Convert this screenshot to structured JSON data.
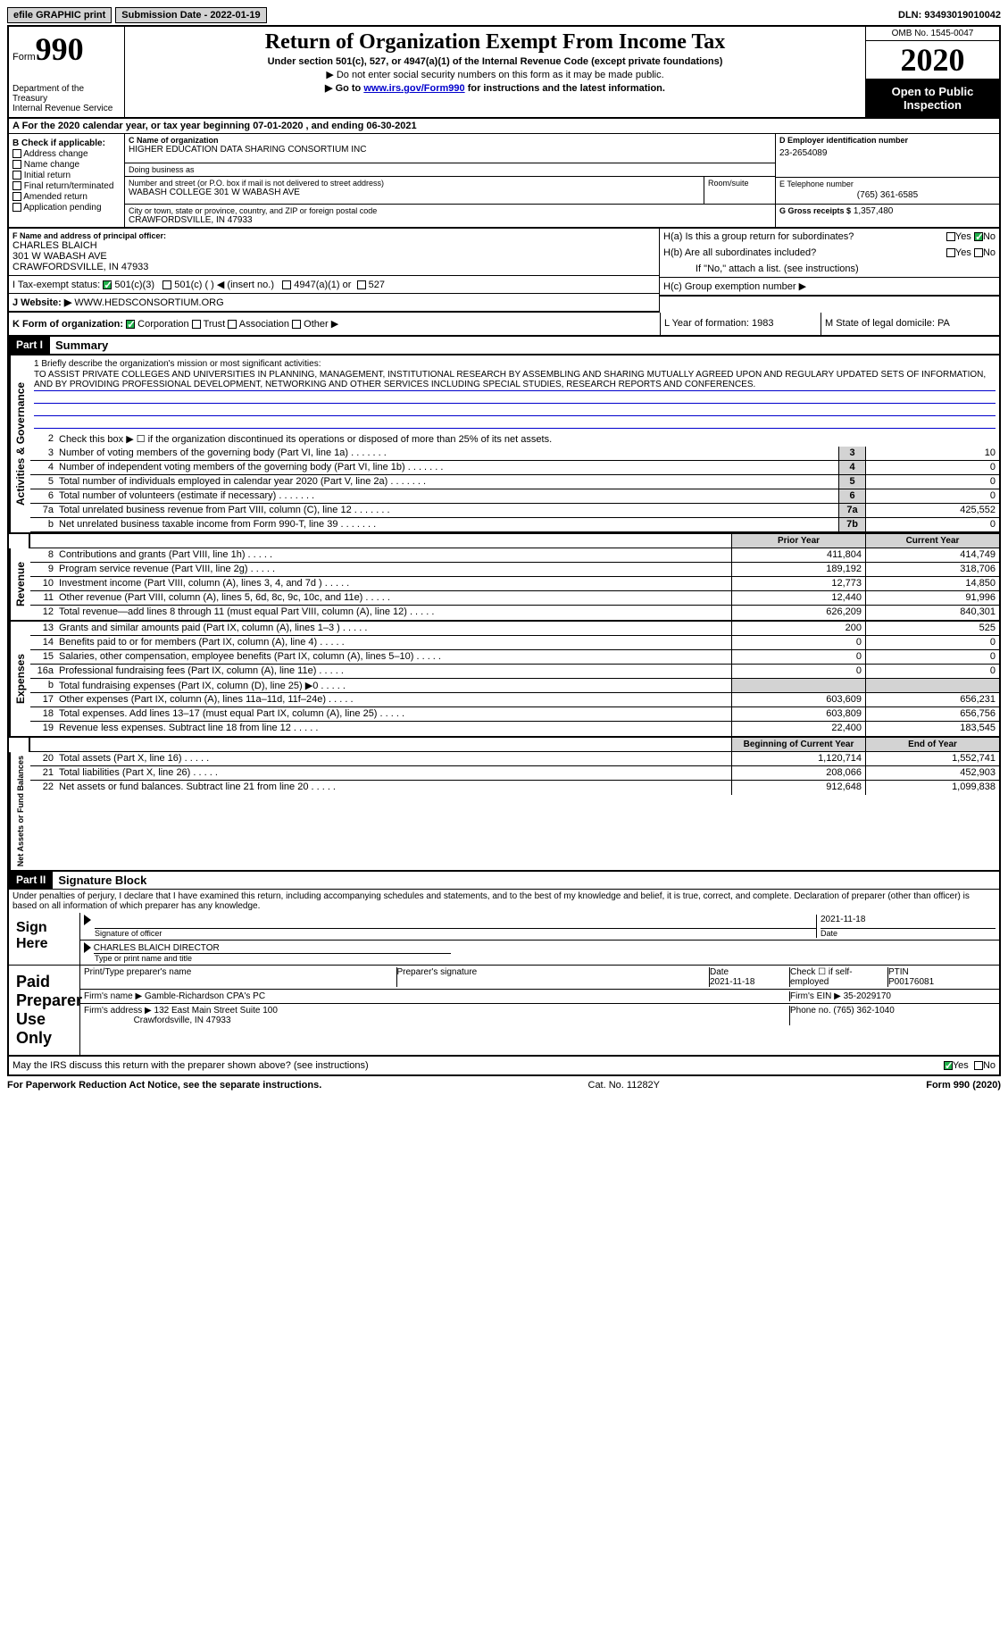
{
  "topbar": {
    "efile": "efile GRAPHIC print",
    "subdate_lbl": "Submission Date - 2022-01-19",
    "dln_lbl": "DLN: 93493019010042"
  },
  "header": {
    "form_lbl": "Form",
    "form_num": "990",
    "dept": "Department of the Treasury\nInternal Revenue Service",
    "title": "Return of Organization Exempt From Income Tax",
    "sub": "Under section 501(c), 527, or 4947(a)(1) of the Internal Revenue Code (except private foundations)",
    "note1": "▶ Do not enter social security numbers on this form as it may be made public.",
    "note2_pre": "▶ Go to ",
    "note2_link": "www.irs.gov/Form990",
    "note2_post": " for instructions and the latest information.",
    "omb": "OMB No. 1545-0047",
    "year": "2020",
    "open": "Open to Public Inspection"
  },
  "rowA": "A For the 2020 calendar year, or tax year beginning 07-01-2020    , and ending 06-30-2021",
  "colB": {
    "hdr": "B Check if applicable:",
    "opts": [
      "Address change",
      "Name change",
      "Initial return",
      "Final return/terminated",
      "Amended return",
      "Application pending"
    ]
  },
  "colC": {
    "name_lbl": "C Name of organization",
    "name": "HIGHER EDUCATION DATA SHARING CONSORTIUM INC",
    "dba_lbl": "Doing business as",
    "addr_lbl": "Number and street (or P.O. box if mail is not delivered to street address)",
    "addr": "WABASH COLLEGE 301 W WABASH AVE",
    "room_lbl": "Room/suite",
    "city_lbl": "City or town, state or province, country, and ZIP or foreign postal code",
    "city": "CRAWFORDSVILLE, IN  47933"
  },
  "colD": {
    "lbl": "D Employer identification number",
    "val": "23-2654089"
  },
  "colE": {
    "lbl": "E Telephone number",
    "val": "(765) 361-6585"
  },
  "colG": {
    "lbl": "G Gross receipts $",
    "val": "1,357,480"
  },
  "colF": {
    "lbl": "F  Name and address of principal officer:",
    "name": "CHARLES BLAICH",
    "addr1": "301 W WABASH AVE",
    "addr2": "CRAWFORDSVILLE, IN  47933"
  },
  "colH": {
    "a": "H(a)  Is this a group return for subordinates?",
    "b": "H(b)  Are all subordinates included?",
    "note": "If \"No,\" attach a list. (see instructions)",
    "c": "H(c)  Group exemption number ▶"
  },
  "rowI": {
    "lbl": "I   Tax-exempt status:",
    "opts": [
      "501(c)(3)",
      "501(c) (  ) ◀ (insert no.)",
      "4947(a)(1) or",
      "527"
    ]
  },
  "rowJ": {
    "lbl": "J   Website: ▶",
    "val": "WWW.HEDSCONSORTIUM.ORG"
  },
  "rowK": {
    "lbl": "K Form of organization:",
    "opts": [
      "Corporation",
      "Trust",
      "Association",
      "Other ▶"
    ]
  },
  "rowL": {
    "lbl": "L Year of formation: 1983"
  },
  "rowM": {
    "lbl": "M State of legal domicile: PA"
  },
  "part1": {
    "hdr": "Part I",
    "title": "Summary",
    "mission_lbl": "1  Briefly describe the organization's mission or most significant activities:",
    "mission": "TO ASSIST PRIVATE COLLEGES AND UNIVERSITIES IN PLANNING, MANAGEMENT, INSTITUTIONAL RESEARCH BY ASSEMBLING AND SHARING MUTUALLY AGREED UPON AND REGULARY UPDATED SETS OF INFORMATION, AND BY PROVIDING PROFESSIONAL DEVELOPMENT, NETWORKING AND OTHER SERVICES INCLUDING SPECIAL STUDIES, RESEARCH REPORTS AND CONFERENCES.",
    "line2": "Check this box ▶ ☐ if the organization discontinued its operations or disposed of more than 25% of its net assets.",
    "gov_lines": [
      {
        "n": "3",
        "t": "Number of voting members of the governing body (Part VI, line 1a)",
        "b": "3",
        "v": "10"
      },
      {
        "n": "4",
        "t": "Number of independent voting members of the governing body (Part VI, line 1b)",
        "b": "4",
        "v": "0"
      },
      {
        "n": "5",
        "t": "Total number of individuals employed in calendar year 2020 (Part V, line 2a)",
        "b": "5",
        "v": "0"
      },
      {
        "n": "6",
        "t": "Total number of volunteers (estimate if necessary)",
        "b": "6",
        "v": "0"
      },
      {
        "n": "7a",
        "t": "Total unrelated business revenue from Part VIII, column (C), line 12",
        "b": "7a",
        "v": "425,552"
      },
      {
        "n": "b",
        "t": "Net unrelated business taxable income from Form 990-T, line 39",
        "b": "7b",
        "v": "0"
      }
    ],
    "col_hdr": {
      "prior": "Prior Year",
      "current": "Current Year"
    },
    "rev_lines": [
      {
        "n": "8",
        "t": "Contributions and grants (Part VIII, line 1h)",
        "p": "411,804",
        "c": "414,749"
      },
      {
        "n": "9",
        "t": "Program service revenue (Part VIII, line 2g)",
        "p": "189,192",
        "c": "318,706"
      },
      {
        "n": "10",
        "t": "Investment income (Part VIII, column (A), lines 3, 4, and 7d )",
        "p": "12,773",
        "c": "14,850"
      },
      {
        "n": "11",
        "t": "Other revenue (Part VIII, column (A), lines 5, 6d, 8c, 9c, 10c, and 11e)",
        "p": "12,440",
        "c": "91,996"
      },
      {
        "n": "12",
        "t": "Total revenue—add lines 8 through 11 (must equal Part VIII, column (A), line 12)",
        "p": "626,209",
        "c": "840,301"
      }
    ],
    "exp_lines": [
      {
        "n": "13",
        "t": "Grants and similar amounts paid (Part IX, column (A), lines 1–3 )",
        "p": "200",
        "c": "525"
      },
      {
        "n": "14",
        "t": "Benefits paid to or for members (Part IX, column (A), line 4)",
        "p": "0",
        "c": "0"
      },
      {
        "n": "15",
        "t": "Salaries, other compensation, employee benefits (Part IX, column (A), lines 5–10)",
        "p": "0",
        "c": "0"
      },
      {
        "n": "16a",
        "t": "Professional fundraising fees (Part IX, column (A), line 11e)",
        "p": "0",
        "c": "0"
      },
      {
        "n": "b",
        "t": "Total fundraising expenses (Part IX, column (D), line 25) ▶0",
        "p": "",
        "c": ""
      },
      {
        "n": "17",
        "t": "Other expenses (Part IX, column (A), lines 11a–11d, 11f–24e)",
        "p": "603,609",
        "c": "656,231"
      },
      {
        "n": "18",
        "t": "Total expenses. Add lines 13–17 (must equal Part IX, column (A), line 25)",
        "p": "603,809",
        "c": "656,756"
      },
      {
        "n": "19",
        "t": "Revenue less expenses. Subtract line 18 from line 12",
        "p": "22,400",
        "c": "183,545"
      }
    ],
    "na_hdr": {
      "begin": "Beginning of Current Year",
      "end": "End of Year"
    },
    "na_lines": [
      {
        "n": "20",
        "t": "Total assets (Part X, line 16)",
        "p": "1,120,714",
        "c": "1,552,741"
      },
      {
        "n": "21",
        "t": "Total liabilities (Part X, line 26)",
        "p": "208,066",
        "c": "452,903"
      },
      {
        "n": "22",
        "t": "Net assets or fund balances. Subtract line 21 from line 20",
        "p": "912,648",
        "c": "1,099,838"
      }
    ],
    "vert_labels": {
      "gov": "Activities & Governance",
      "rev": "Revenue",
      "exp": "Expenses",
      "na": "Net Assets or Fund Balances"
    }
  },
  "part2": {
    "hdr": "Part II",
    "title": "Signature Block",
    "decl": "Under penalties of perjury, I declare that I have examined this return, including accompanying schedules and statements, and to the best of my knowledge and belief, it is true, correct, and complete. Declaration of preparer (other than officer) is based on all information of which preparer has any knowledge.",
    "sign_here": "Sign Here",
    "sig_officer": "Signature of officer",
    "sig_date": "2021-11-18",
    "date_lbl": "Date",
    "name_title": "CHARLES BLAICH  DIRECTOR",
    "name_title_lbl": "Type or print name and title",
    "paid": "Paid Preparer Use Only",
    "prep_name_lbl": "Print/Type preparer's name",
    "prep_sig_lbl": "Preparer's signature",
    "prep_date": "2021-11-18",
    "self_emp": "Check ☐ if self-employed",
    "ptin_lbl": "PTIN",
    "ptin": "P00176081",
    "firm_name_lbl": "Firm's name    ▶",
    "firm_name": "Gamble-Richardson CPA's PC",
    "firm_ein_lbl": "Firm's EIN ▶",
    "firm_ein": "35-2029170",
    "firm_addr_lbl": "Firm's address ▶",
    "firm_addr1": "132 East Main Street Suite 100",
    "firm_addr2": "Crawfordsville, IN  47933",
    "phone_lbl": "Phone no.",
    "phone": "(765) 362-1040",
    "discuss": "May the IRS discuss this return with the preparer shown above? (see instructions)"
  },
  "footer": {
    "left": "For Paperwork Reduction Act Notice, see the separate instructions.",
    "mid": "Cat. No. 11282Y",
    "right": "Form 990 (2020)"
  },
  "yn": {
    "yes": "Yes",
    "no": "No"
  }
}
